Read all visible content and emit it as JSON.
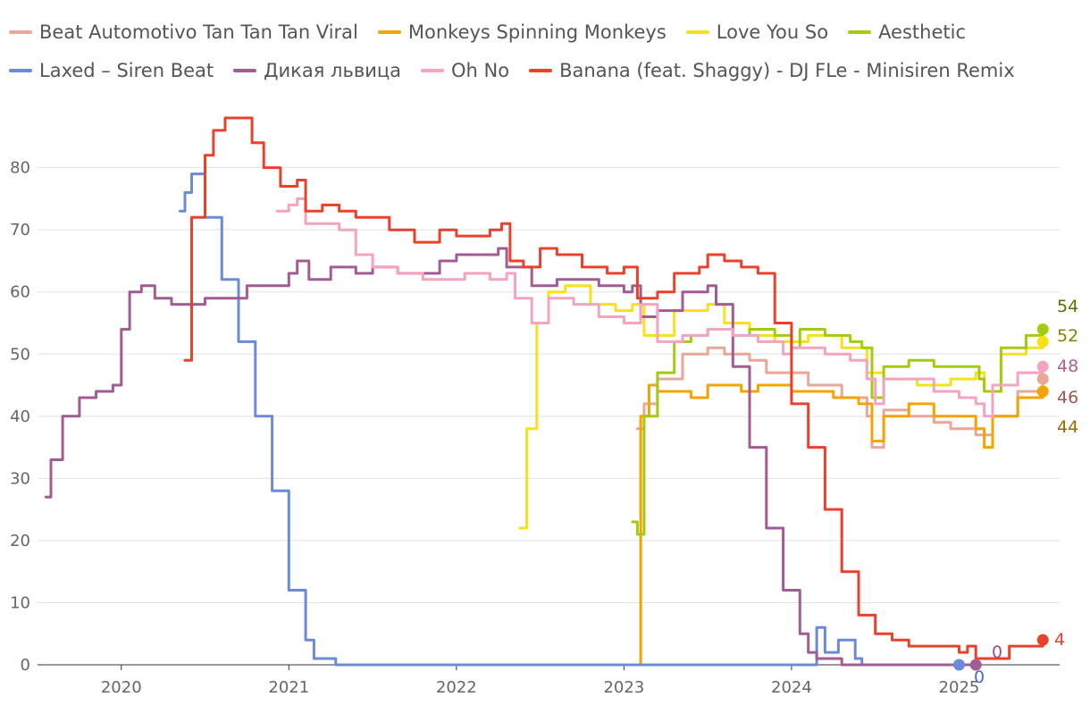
{
  "chart_data": {
    "type": "line",
    "title": "",
    "xlabel": "",
    "ylabel": "",
    "xlim": [
      2019.5,
      2025.6
    ],
    "ylim": [
      0,
      90
    ],
    "x_ticks": [
      "2020",
      "2021",
      "2022",
      "2023",
      "2024",
      "2025"
    ],
    "y_ticks": [
      "0",
      "10",
      "20",
      "30",
      "40",
      "50",
      "60",
      "70",
      "80"
    ],
    "legend_position": "top",
    "series": [
      {
        "name": "Beat Automotivo Tan Tan Tan Viral",
        "color": "#e8a798",
        "end_label": "46",
        "end_label_color": "#9a5a50",
        "points": [
          [
            2023.08,
            38
          ],
          [
            2023.12,
            42
          ],
          [
            2023.2,
            46
          ],
          [
            2023.35,
            50
          ],
          [
            2023.5,
            51
          ],
          [
            2023.6,
            50
          ],
          [
            2023.75,
            49
          ],
          [
            2023.85,
            47
          ],
          [
            2024.0,
            47
          ],
          [
            2024.1,
            45
          ],
          [
            2024.3,
            43
          ],
          [
            2024.45,
            40
          ],
          [
            2024.48,
            35
          ],
          [
            2024.55,
            41
          ],
          [
            2024.7,
            40
          ],
          [
            2024.85,
            39
          ],
          [
            2024.95,
            38
          ],
          [
            2025.1,
            37
          ],
          [
            2025.2,
            40
          ],
          [
            2025.35,
            44
          ],
          [
            2025.5,
            46
          ]
        ]
      },
      {
        "name": "Monkeys Spinning Monkeys",
        "color": "#f5a300",
        "end_label": "44",
        "end_label_color": "#9a6a00",
        "points": [
          [
            2023.08,
            0
          ],
          [
            2023.1,
            40
          ],
          [
            2023.15,
            45
          ],
          [
            2023.2,
            44
          ],
          [
            2023.4,
            43
          ],
          [
            2023.5,
            45
          ],
          [
            2023.6,
            45
          ],
          [
            2023.7,
            44
          ],
          [
            2023.8,
            45
          ],
          [
            2024.0,
            44
          ],
          [
            2024.15,
            44
          ],
          [
            2024.25,
            43
          ],
          [
            2024.4,
            42
          ],
          [
            2024.48,
            36
          ],
          [
            2024.55,
            40
          ],
          [
            2024.7,
            42
          ],
          [
            2024.85,
            40
          ],
          [
            2025.0,
            40
          ],
          [
            2025.1,
            38
          ],
          [
            2025.15,
            35
          ],
          [
            2025.2,
            40
          ],
          [
            2025.35,
            43
          ],
          [
            2025.5,
            44
          ]
        ]
      },
      {
        "name": "Love You So",
        "color": "#f7e11b",
        "end_label": "52",
        "end_label_color": "#8a8000",
        "points": [
          [
            2022.38,
            22
          ],
          [
            2022.42,
            38
          ],
          [
            2022.48,
            55
          ],
          [
            2022.55,
            60
          ],
          [
            2022.65,
            61
          ],
          [
            2022.8,
            58
          ],
          [
            2022.95,
            57
          ],
          [
            2023.05,
            58
          ],
          [
            2023.12,
            53
          ],
          [
            2023.3,
            57
          ],
          [
            2023.5,
            58
          ],
          [
            2023.6,
            55
          ],
          [
            2023.75,
            53
          ],
          [
            2023.9,
            52
          ],
          [
            2024.1,
            53
          ],
          [
            2024.3,
            51
          ],
          [
            2024.45,
            47
          ],
          [
            2024.55,
            46
          ],
          [
            2024.75,
            45
          ],
          [
            2024.95,
            46
          ],
          [
            2025.1,
            47
          ],
          [
            2025.15,
            44
          ],
          [
            2025.25,
            50
          ],
          [
            2025.4,
            51
          ],
          [
            2025.5,
            52
          ]
        ]
      },
      {
        "name": "Aesthetic",
        "color": "#a3cc10",
        "end_label": "54",
        "end_label_color": "#5a7000",
        "points": [
          [
            2023.05,
            23
          ],
          [
            2023.08,
            21
          ],
          [
            2023.12,
            40
          ],
          [
            2023.2,
            47
          ],
          [
            2023.3,
            52
          ],
          [
            2023.4,
            53
          ],
          [
            2023.5,
            54
          ],
          [
            2023.65,
            53
          ],
          [
            2023.75,
            54
          ],
          [
            2023.9,
            53
          ],
          [
            2024.0,
            51
          ],
          [
            2024.05,
            54
          ],
          [
            2024.2,
            53
          ],
          [
            2024.35,
            52
          ],
          [
            2024.42,
            51
          ],
          [
            2024.48,
            43
          ],
          [
            2024.55,
            48
          ],
          [
            2024.7,
            49
          ],
          [
            2024.85,
            48
          ],
          [
            2025.05,
            48
          ],
          [
            2025.12,
            46
          ],
          [
            2025.15,
            44
          ],
          [
            2025.25,
            51
          ],
          [
            2025.4,
            53
          ],
          [
            2025.5,
            54
          ]
        ]
      },
      {
        "name": "Laxed – Siren Beat",
        "color": "#6b8bd8",
        "end_label": "0",
        "end_label_color": "#4a6cc0",
        "points": [
          [
            2020.35,
            73
          ],
          [
            2020.38,
            76
          ],
          [
            2020.42,
            79
          ],
          [
            2020.5,
            72
          ],
          [
            2020.6,
            62
          ],
          [
            2020.7,
            52
          ],
          [
            2020.8,
            40
          ],
          [
            2020.9,
            28
          ],
          [
            2021.0,
            12
          ],
          [
            2021.1,
            4
          ],
          [
            2021.15,
            1
          ],
          [
            2021.25,
            1
          ],
          [
            2021.28,
            0
          ],
          [
            2024.0,
            0
          ],
          [
            2024.1,
            0
          ],
          [
            2024.15,
            6
          ],
          [
            2024.2,
            2
          ],
          [
            2024.28,
            4
          ],
          [
            2024.33,
            4
          ],
          [
            2024.38,
            1
          ],
          [
            2024.42,
            0
          ],
          [
            2025.0,
            0
          ]
        ]
      },
      {
        "name": "Дикая львица",
        "color": "#a15c93",
        "end_label": "0",
        "end_label_color": "#9a5090",
        "points": [
          [
            2019.55,
            27
          ],
          [
            2019.58,
            33
          ],
          [
            2019.65,
            40
          ],
          [
            2019.75,
            43
          ],
          [
            2019.85,
            44
          ],
          [
            2019.95,
            45
          ],
          [
            2020.0,
            54
          ],
          [
            2020.05,
            60
          ],
          [
            2020.12,
            61
          ],
          [
            2020.2,
            59
          ],
          [
            2020.3,
            58
          ],
          [
            2020.5,
            59
          ],
          [
            2020.6,
            59
          ],
          [
            2020.75,
            61
          ],
          [
            2020.9,
            61
          ],
          [
            2021.0,
            63
          ],
          [
            2021.05,
            65
          ],
          [
            2021.12,
            62
          ],
          [
            2021.25,
            64
          ],
          [
            2021.4,
            63
          ],
          [
            2021.5,
            64
          ],
          [
            2021.65,
            63
          ],
          [
            2021.8,
            63
          ],
          [
            2021.9,
            65
          ],
          [
            2022.0,
            66
          ],
          [
            2022.15,
            66
          ],
          [
            2022.25,
            67
          ],
          [
            2022.3,
            64
          ],
          [
            2022.45,
            61
          ],
          [
            2022.6,
            62
          ],
          [
            2022.75,
            62
          ],
          [
            2022.85,
            61
          ],
          [
            2023.0,
            60
          ],
          [
            2023.05,
            61
          ],
          [
            2023.1,
            56
          ],
          [
            2023.2,
            57
          ],
          [
            2023.35,
            60
          ],
          [
            2023.5,
            61
          ],
          [
            2023.55,
            58
          ],
          [
            2023.65,
            48
          ],
          [
            2023.75,
            35
          ],
          [
            2023.85,
            22
          ],
          [
            2023.95,
            12
          ],
          [
            2024.05,
            5
          ],
          [
            2024.1,
            2
          ],
          [
            2024.15,
            1
          ],
          [
            2024.3,
            0
          ],
          [
            2025.1,
            0
          ]
        ]
      },
      {
        "name": "Oh No",
        "color": "#f4a3c1",
        "end_label": "48",
        "end_label_color": "#b0608a",
        "points": [
          [
            2020.93,
            73
          ],
          [
            2021.0,
            74
          ],
          [
            2021.05,
            75
          ],
          [
            2021.1,
            71
          ],
          [
            2021.2,
            71
          ],
          [
            2021.3,
            70
          ],
          [
            2021.4,
            66
          ],
          [
            2021.5,
            64
          ],
          [
            2021.65,
            63
          ],
          [
            2021.8,
            62
          ],
          [
            2021.95,
            62
          ],
          [
            2022.05,
            63
          ],
          [
            2022.2,
            62
          ],
          [
            2022.3,
            63
          ],
          [
            2022.35,
            59
          ],
          [
            2022.45,
            55
          ],
          [
            2022.55,
            59
          ],
          [
            2022.7,
            58
          ],
          [
            2022.85,
            56
          ],
          [
            2023.0,
            55
          ],
          [
            2023.1,
            58
          ],
          [
            2023.2,
            52
          ],
          [
            2023.35,
            53
          ],
          [
            2023.5,
            54
          ],
          [
            2023.65,
            53
          ],
          [
            2023.8,
            52
          ],
          [
            2023.95,
            50
          ],
          [
            2024.0,
            51
          ],
          [
            2024.2,
            50
          ],
          [
            2024.35,
            49
          ],
          [
            2024.45,
            46
          ],
          [
            2024.5,
            42
          ],
          [
            2024.55,
            46
          ],
          [
            2024.7,
            46
          ],
          [
            2024.85,
            44
          ],
          [
            2025.0,
            43
          ],
          [
            2025.1,
            42
          ],
          [
            2025.15,
            40
          ],
          [
            2025.2,
            45
          ],
          [
            2025.35,
            47
          ],
          [
            2025.5,
            48
          ]
        ]
      },
      {
        "name": "Banana (feat. Shaggy) - DJ FLe - Minisiren Remix",
        "color": "#e8412c",
        "end_label": "4",
        "end_label_color": "#e8412c",
        "points": [
          [
            2020.38,
            49
          ],
          [
            2020.42,
            72
          ],
          [
            2020.5,
            82
          ],
          [
            2020.55,
            86
          ],
          [
            2020.62,
            88
          ],
          [
            2020.7,
            88
          ],
          [
            2020.78,
            84
          ],
          [
            2020.85,
            80
          ],
          [
            2020.95,
            77
          ],
          [
            2021.0,
            77
          ],
          [
            2021.05,
            78
          ],
          [
            2021.1,
            73
          ],
          [
            2021.2,
            74
          ],
          [
            2021.3,
            73
          ],
          [
            2021.4,
            72
          ],
          [
            2021.5,
            72
          ],
          [
            2021.6,
            70
          ],
          [
            2021.75,
            68
          ],
          [
            2021.9,
            70
          ],
          [
            2022.0,
            69
          ],
          [
            2022.2,
            70
          ],
          [
            2022.27,
            71
          ],
          [
            2022.32,
            65
          ],
          [
            2022.4,
            64
          ],
          [
            2022.5,
            67
          ],
          [
            2022.6,
            66
          ],
          [
            2022.75,
            64
          ],
          [
            2022.9,
            63
          ],
          [
            2023.0,
            64
          ],
          [
            2023.08,
            59
          ],
          [
            2023.2,
            60
          ],
          [
            2023.3,
            63
          ],
          [
            2023.45,
            64
          ],
          [
            2023.5,
            66
          ],
          [
            2023.6,
            65
          ],
          [
            2023.7,
            64
          ],
          [
            2023.8,
            63
          ],
          [
            2023.85,
            63
          ],
          [
            2023.9,
            55
          ],
          [
            2024.0,
            42
          ],
          [
            2024.1,
            35
          ],
          [
            2024.2,
            25
          ],
          [
            2024.3,
            15
          ],
          [
            2024.4,
            8
          ],
          [
            2024.5,
            5
          ],
          [
            2024.6,
            4
          ],
          [
            2024.7,
            3
          ],
          [
            2024.9,
            3
          ],
          [
            2025.0,
            2
          ],
          [
            2025.05,
            3
          ],
          [
            2025.1,
            1
          ],
          [
            2025.3,
            3
          ],
          [
            2025.5,
            4
          ]
        ]
      }
    ]
  }
}
